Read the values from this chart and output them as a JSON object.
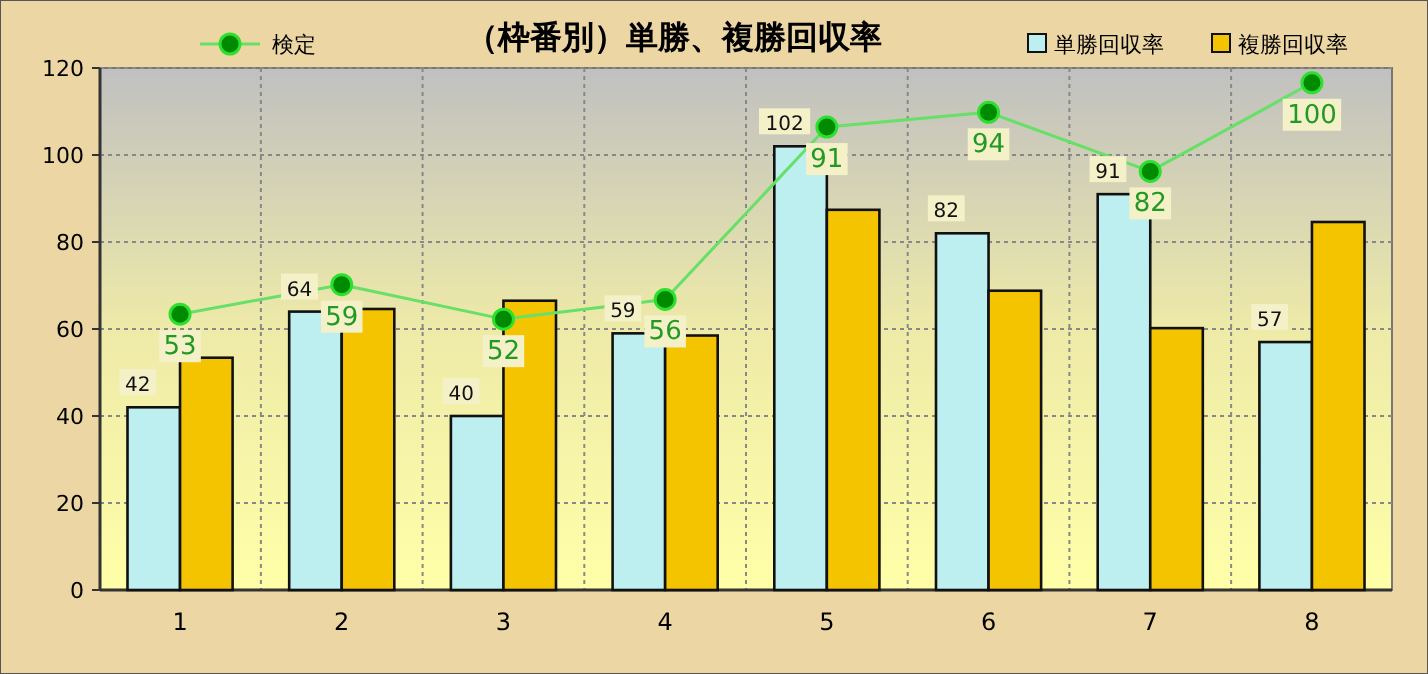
{
  "chart_data": {
    "type": "bar",
    "title": "（枠番別）単勝、複勝回収率",
    "categories": [
      "1",
      "2",
      "3",
      "4",
      "5",
      "6",
      "7",
      "8"
    ],
    "ylim": [
      0,
      120
    ],
    "yticks": [
      0,
      20,
      40,
      60,
      80,
      100,
      120
    ],
    "y2lim": [
      -3,
      103
    ],
    "grid": true,
    "legend": "top",
    "series": [
      {
        "name": "単勝回収率",
        "color": "#bdeef0",
        "values": [
          42,
          64,
          40,
          59,
          102,
          82,
          91,
          57
        ],
        "value_labels": [
          "42",
          "64",
          "40",
          "59",
          "102",
          "82",
          "91",
          "57"
        ]
      },
      {
        "name": "複勝回収率",
        "color": "#f5c400",
        "values": [
          53.4,
          64.6,
          66.5,
          58.5,
          87.4,
          68.8,
          60.2,
          84.6
        ]
      },
      {
        "name": "検定",
        "type": "line",
        "axis": "y2",
        "color": "#66e066",
        "marker": "circle",
        "values": [
          53,
          59,
          52,
          56,
          91,
          94,
          82,
          100
        ],
        "value_labels": [
          "53",
          "59",
          "52",
          "56",
          "91",
          "94",
          "82",
          "100"
        ]
      }
    ]
  }
}
